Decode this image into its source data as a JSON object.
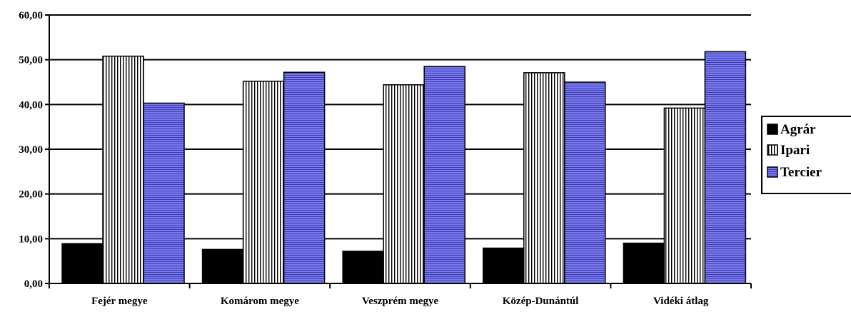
{
  "chart_data": {
    "type": "bar",
    "categories": [
      "Fejér megye",
      "Komárom megye",
      "Veszprém megye",
      "Közép-Dunántúl",
      "Vidéki átlag"
    ],
    "series": [
      {
        "name": "Agrár",
        "values": [
          8.9,
          7.6,
          7.2,
          7.9,
          9.0
        ],
        "color": "#000000",
        "pattern": "solid"
      },
      {
        "name": "Ipari",
        "values": [
          50.8,
          45.2,
          44.4,
          47.1,
          39.2
        ],
        "color": "#ffffff",
        "pattern": "vertical-lines"
      },
      {
        "name": "Tercier",
        "values": [
          40.3,
          47.2,
          48.5,
          45.0,
          51.8
        ],
        "color": "#6f6fe8",
        "pattern": "horizontal-lines"
      }
    ],
    "y_ticks": [
      "0,00",
      "10,00",
      "20,00",
      "30,00",
      "40,00",
      "50,00",
      "60,00"
    ],
    "ylim": [
      0,
      60
    ],
    "grid": true,
    "legend_position": "right",
    "title": "",
    "xlabel": "",
    "ylabel": ""
  }
}
